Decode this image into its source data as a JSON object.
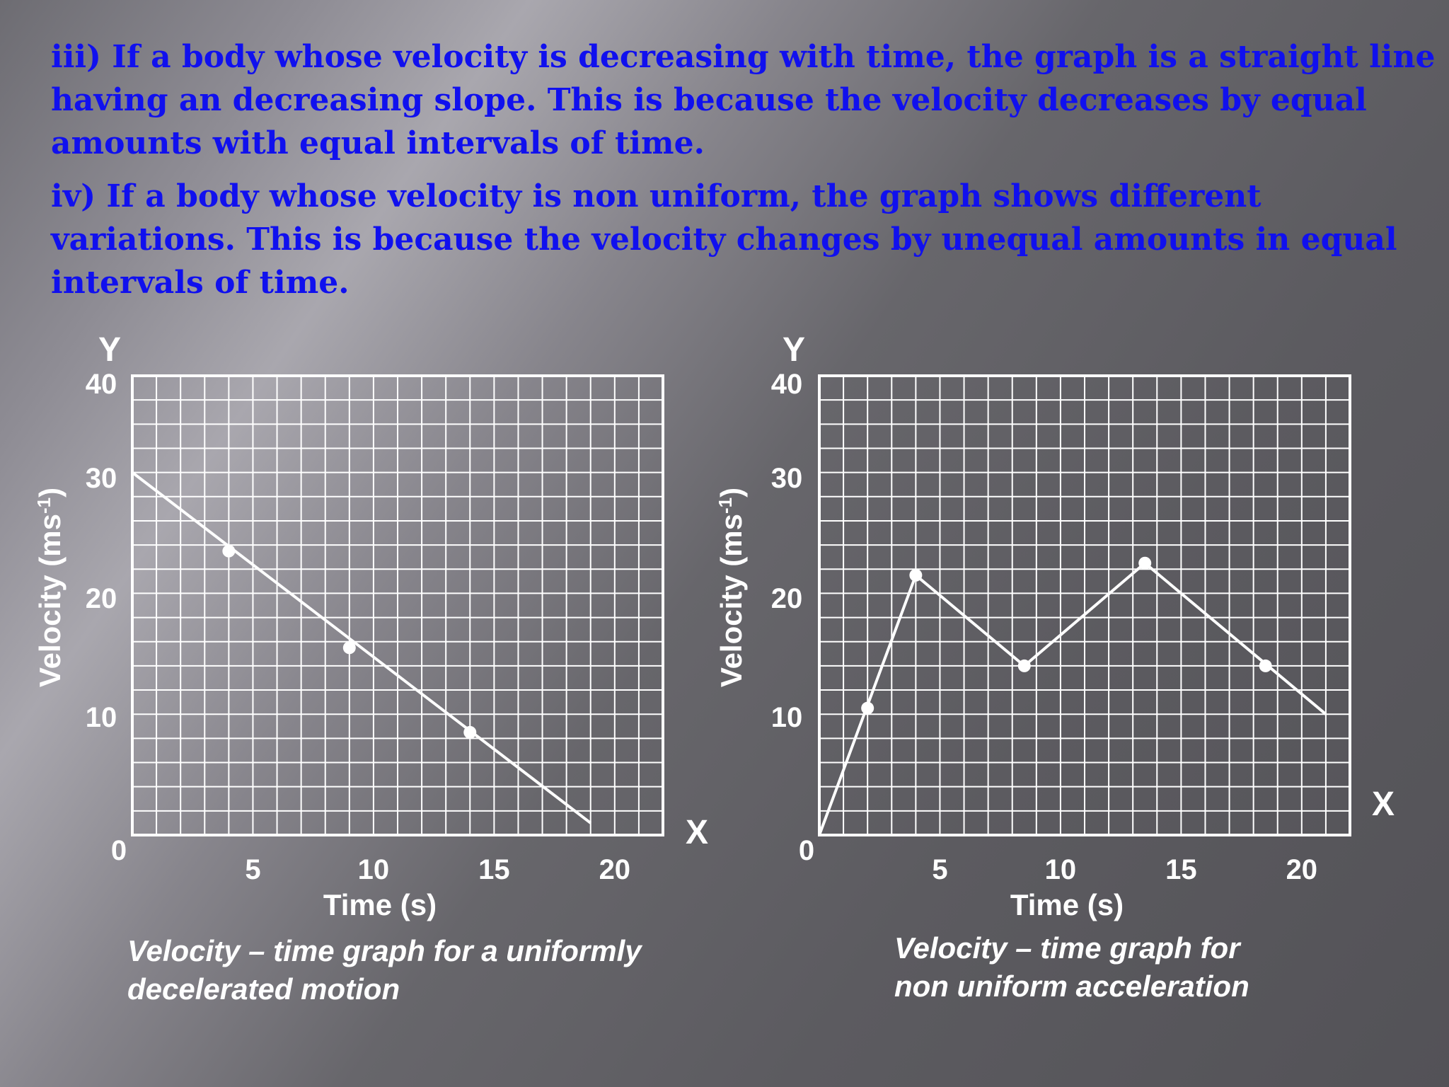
{
  "paragraphs": {
    "iii": "iii) If a body whose velocity is decreasing with time, the graph is a straight line having an decreasing slope. This is because the velocity decreases by equal amounts with equal intervals of time.",
    "iv": "iv) If a body whose velocity is non uniform, the graph shows different variations. This is because the velocity changes by unequal amounts in equal intervals of time."
  },
  "chart_data": [
    {
      "type": "line",
      "title": "Velocity – time graph for a uniformly decelerated motion",
      "title_lines": [
        "Velocity – time graph for a uniformly",
        "decelerated motion"
      ],
      "xlabel": "Time (s)",
      "ylabel": "Velocity (ms",
      "ylabel_sup": "-1",
      "ylabel_end": ")",
      "x_axis_letter": "X",
      "y_axis_letter": "Y",
      "origin_label": "0",
      "xlim": [
        0,
        22
      ],
      "ylim": [
        0,
        38
      ],
      "xticks": [
        5,
        10,
        15,
        20
      ],
      "yticks": [
        10,
        20,
        30,
        40
      ],
      "grid": true,
      "line": {
        "x": [
          0,
          19
        ],
        "y": [
          30,
          1
        ]
      },
      "points": {
        "x": [
          4,
          9,
          14
        ],
        "y": [
          23.5,
          15.5,
          8.5
        ]
      },
      "line_color": "#ffffff"
    },
    {
      "type": "line",
      "title": "Velocity – time graph for non uniform acceleration",
      "title_lines": [
        "Velocity – time graph for",
        "non uniform acceleration"
      ],
      "xlabel": "Time (s)",
      "ylabel": "Velocity (ms",
      "ylabel_sup": "-1",
      "ylabel_end": ")",
      "x_axis_letter": "X",
      "y_axis_letter": "Y",
      "origin_label": "0",
      "xlim": [
        0,
        22
      ],
      "ylim": [
        0,
        38
      ],
      "xticks": [
        5,
        10,
        15,
        20
      ],
      "yticks": [
        10,
        20,
        30,
        40
      ],
      "grid": true,
      "line": {
        "x": [
          0,
          4,
          8.5,
          21
        ],
        "y": [
          0,
          21.5,
          14,
          10
        ]
      },
      "line_full": {
        "x": [
          0,
          4,
          8.5,
          13.5,
          21
        ],
        "y": [
          0,
          21.5,
          14,
          22.5,
          10
        ]
      },
      "points": {
        "x": [
          2,
          4,
          8.5,
          13.5,
          18.5
        ],
        "y": [
          10.5,
          21.5,
          14,
          22.5,
          14
        ]
      },
      "line_color": "#ffffff"
    }
  ]
}
